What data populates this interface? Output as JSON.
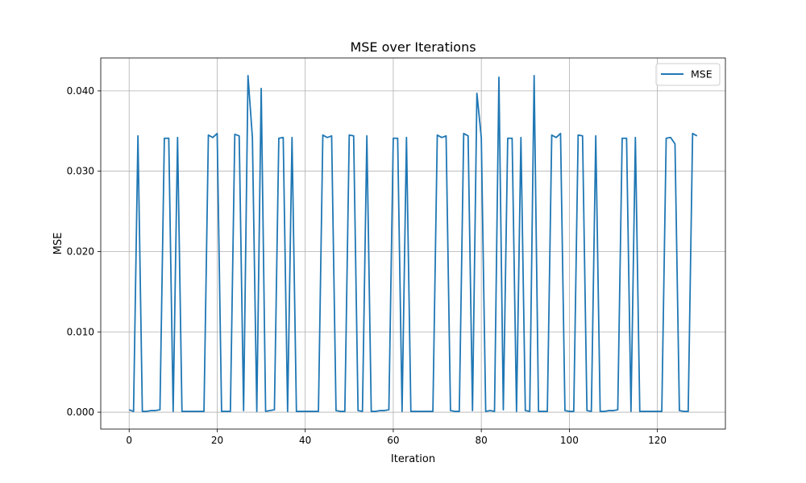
{
  "chart_data": {
    "type": "line",
    "title": "MSE over Iterations",
    "xlabel": "Iteration",
    "ylabel": "MSE",
    "xlim": [
      -6.45,
      135.45
    ],
    "ylim": [
      -0.0021,
      0.0441
    ],
    "xticks": [
      0,
      20,
      40,
      60,
      80,
      100,
      120
    ],
    "yticks": [
      0.0,
      0.01,
      0.02,
      0.03,
      0.04
    ],
    "ytick_labels": [
      "0.000",
      "0.010",
      "0.020",
      "0.030",
      "0.040"
    ],
    "grid": true,
    "legend": {
      "position": "top-right",
      "entries": [
        "MSE"
      ]
    },
    "series": [
      {
        "name": "MSE",
        "color": "#1f77b4",
        "x": [
          0,
          1,
          2,
          3,
          4,
          5,
          6,
          7,
          8,
          9,
          10,
          11,
          12,
          13,
          14,
          15,
          16,
          17,
          18,
          19,
          20,
          21,
          22,
          23,
          24,
          25,
          26,
          27,
          28,
          29,
          30,
          31,
          32,
          33,
          34,
          35,
          36,
          37,
          38,
          39,
          40,
          41,
          42,
          43,
          44,
          45,
          46,
          47,
          48,
          49,
          50,
          51,
          52,
          53,
          54,
          55,
          56,
          57,
          58,
          59,
          60,
          61,
          62,
          63,
          64,
          65,
          66,
          67,
          68,
          69,
          70,
          71,
          72,
          73,
          74,
          75,
          76,
          77,
          78,
          79,
          80,
          81,
          82,
          83,
          84,
          85,
          86,
          87,
          88,
          89,
          90,
          91,
          92,
          93,
          94,
          95,
          96,
          97,
          98,
          99,
          100,
          101,
          102,
          103,
          104,
          105,
          106,
          107,
          108,
          109,
          110,
          111,
          112,
          113,
          114,
          115,
          116,
          117,
          118,
          119,
          120,
          121,
          122,
          123,
          124,
          125,
          126,
          127,
          128,
          129
        ],
        "y": [
          0.0003,
          0.0001,
          0.0344,
          0.0001,
          0.0001,
          0.0002,
          0.0002,
          0.0003,
          0.0341,
          0.0341,
          0.0001,
          0.0342,
          0.0001,
          0.0001,
          0.0001,
          0.0001,
          0.0001,
          0.0001,
          0.0345,
          0.0342,
          0.0347,
          0.0001,
          0.0001,
          0.0001,
          0.0346,
          0.0344,
          0.0002,
          0.0419,
          0.0342,
          0.0001,
          0.0403,
          0.0001,
          0.0002,
          0.0003,
          0.0341,
          0.0342,
          0.0001,
          0.0342,
          0.0001,
          0.0001,
          0.0001,
          0.0001,
          0.0001,
          0.0001,
          0.0345,
          0.0342,
          0.0344,
          0.0002,
          0.0001,
          0.0001,
          0.0345,
          0.0344,
          0.0002,
          0.0001,
          0.0344,
          0.0001,
          0.0001,
          0.0002,
          0.0002,
          0.0003,
          0.0341,
          0.0341,
          0.0001,
          0.0342,
          0.0001,
          0.0001,
          0.0001,
          0.0001,
          0.0001,
          0.0001,
          0.0345,
          0.0342,
          0.0344,
          0.0002,
          0.0001,
          0.0001,
          0.0347,
          0.0344,
          0.0002,
          0.0397,
          0.0342,
          0.0001,
          0.0002,
          0.0001,
          0.0417,
          0.0003,
          0.0341,
          0.0341,
          0.0001,
          0.0342,
          0.0002,
          0.0001,
          0.0419,
          0.0001,
          0.0001,
          0.0001,
          0.0345,
          0.0342,
          0.0347,
          0.0002,
          0.0001,
          0.0001,
          0.0345,
          0.0344,
          0.0002,
          0.0001,
          0.0344,
          0.0001,
          0.0001,
          0.0002,
          0.0002,
          0.0003,
          0.0341,
          0.0341,
          0.0001,
          0.0342,
          0.0001,
          0.0001,
          0.0001,
          0.0001,
          0.0001,
          0.0001,
          0.0341,
          0.0342,
          0.0334,
          0.0002,
          0.0001,
          0.0001,
          0.0347,
          0.0344
        ]
      }
    ]
  }
}
